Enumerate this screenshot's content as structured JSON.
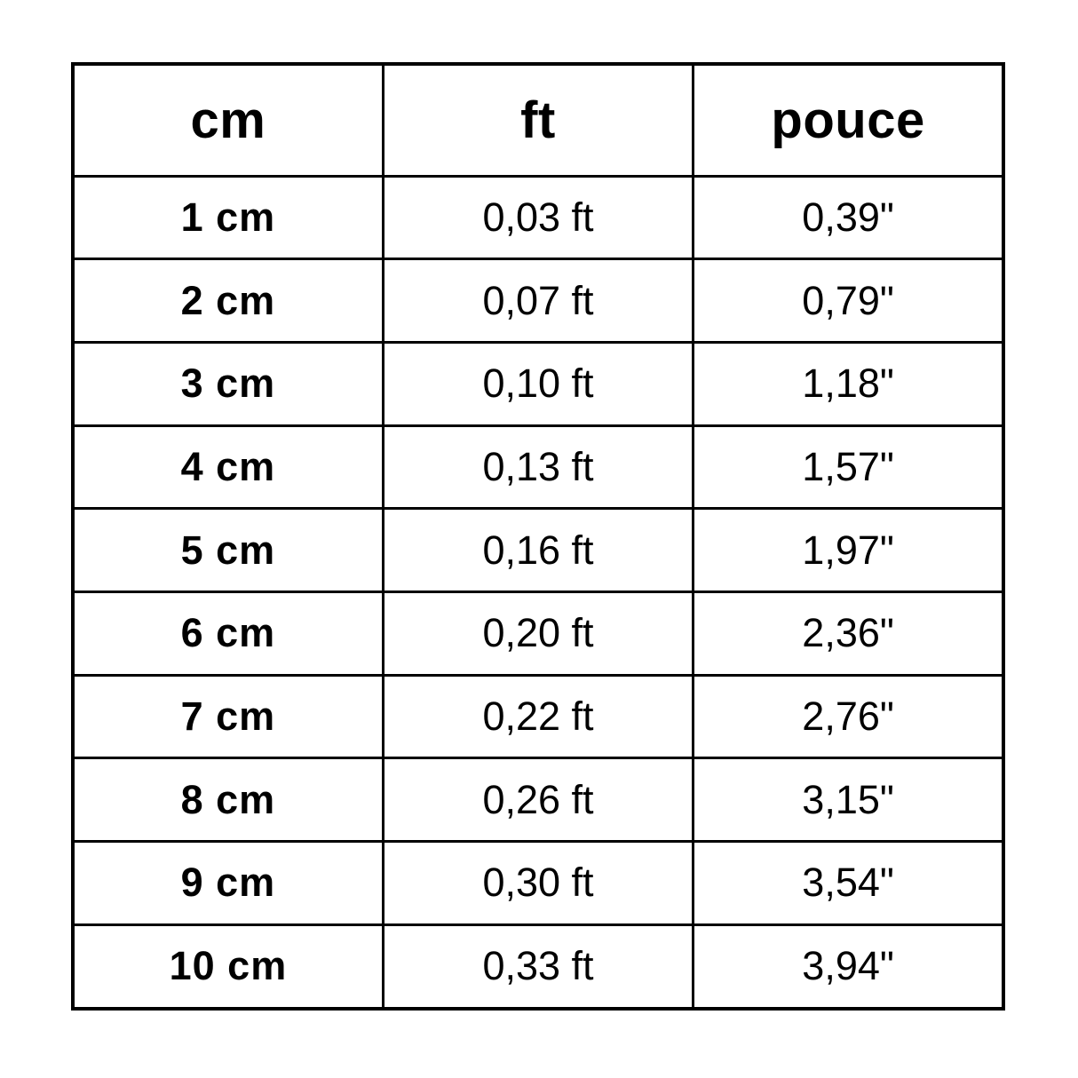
{
  "colors": {
    "background": "#ffffff",
    "border": "#000000",
    "text": "#000000"
  },
  "table": {
    "columns": [
      {
        "label": "cm"
      },
      {
        "label": "ft"
      },
      {
        "label": "pouce"
      }
    ],
    "rows": [
      {
        "cm": "1 cm",
        "ft": "0,03 ft",
        "pouce": "0,39\""
      },
      {
        "cm": "2 cm",
        "ft": "0,07 ft",
        "pouce": "0,79\""
      },
      {
        "cm": "3 cm",
        "ft": "0,10 ft",
        "pouce": "1,18\""
      },
      {
        "cm": "4 cm",
        "ft": "0,13 ft",
        "pouce": "1,57\""
      },
      {
        "cm": "5 cm",
        "ft": "0,16 ft",
        "pouce": "1,97\""
      },
      {
        "cm": "6 cm",
        "ft": "0,20 ft",
        "pouce": "2,36\""
      },
      {
        "cm": "7 cm",
        "ft": "0,22 ft",
        "pouce": "2,76\""
      },
      {
        "cm": "8 cm",
        "ft": "0,26 ft",
        "pouce": "3,15\""
      },
      {
        "cm": "9 cm",
        "ft": "0,30 ft",
        "pouce": "3,54\""
      },
      {
        "cm": "10 cm",
        "ft": "0,33 ft",
        "pouce": "3,94\""
      }
    ]
  },
  "chart_data": {
    "type": "table",
    "title": "",
    "columns": [
      "cm",
      "ft",
      "pouce"
    ],
    "rows": [
      [
        "1 cm",
        "0,03 ft",
        "0,39\""
      ],
      [
        "2 cm",
        "0,07 ft",
        "0,79\""
      ],
      [
        "3 cm",
        "0,10 ft",
        "1,18\""
      ],
      [
        "4 cm",
        "0,13 ft",
        "1,57\""
      ],
      [
        "5 cm",
        "0,16 ft",
        "1,97\""
      ],
      [
        "6 cm",
        "0,20 ft",
        "2,36\""
      ],
      [
        "7 cm",
        "0,22 ft",
        "2,76\""
      ],
      [
        "8 cm",
        "0,26 ft",
        "3,15\""
      ],
      [
        "9 cm",
        "0,30 ft",
        "3,54\""
      ],
      [
        "10 cm",
        "0,33 ft",
        "3,94\""
      ]
    ]
  }
}
